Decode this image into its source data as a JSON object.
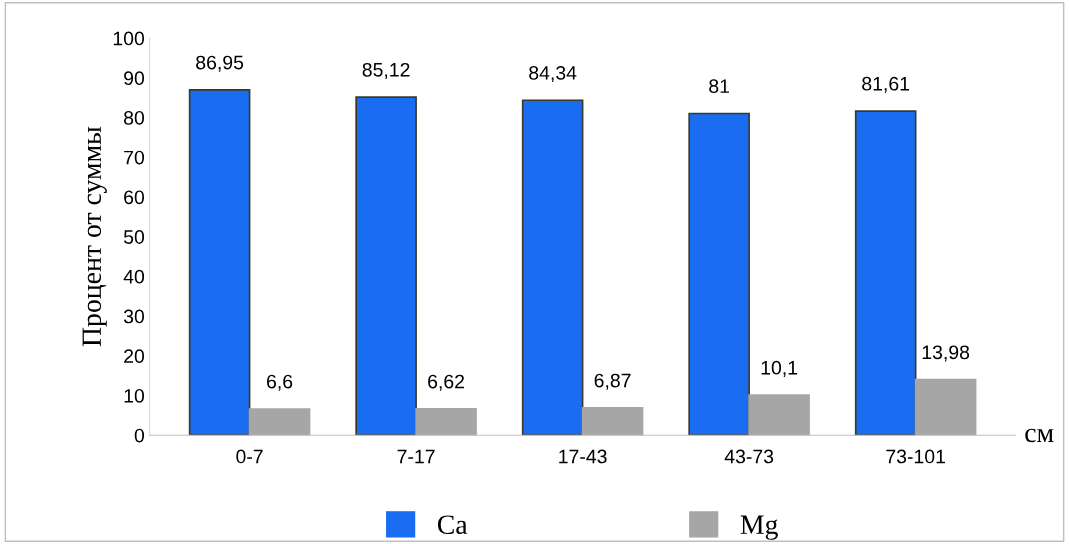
{
  "chart_data": {
    "type": "bar",
    "ylabel": "Процент от суммы",
    "xlabel": "см",
    "categories": [
      "0-7",
      "7-17",
      "17-43",
      "43-73",
      "73-101"
    ],
    "series": [
      {
        "name": "Ca",
        "color": "#1a6cf0",
        "values": [
          86.95,
          85.12,
          84.34,
          81,
          81.61
        ],
        "value_labels": [
          "86,95",
          "85,12",
          "84,34",
          "81",
          "81,61"
        ]
      },
      {
        "name": "Mg",
        "color": "#a6a6a6",
        "values": [
          6.6,
          6.62,
          6.87,
          10.1,
          13.98
        ],
        "value_labels": [
          "6,6",
          "6,62",
          "6,87",
          "10,1",
          "13,98"
        ]
      }
    ],
    "ylim": [
      0,
      100
    ],
    "yticks": [
      0,
      10,
      20,
      30,
      40,
      50,
      60,
      70,
      80,
      90,
      100
    ],
    "grid": false,
    "legend": "bottom"
  }
}
